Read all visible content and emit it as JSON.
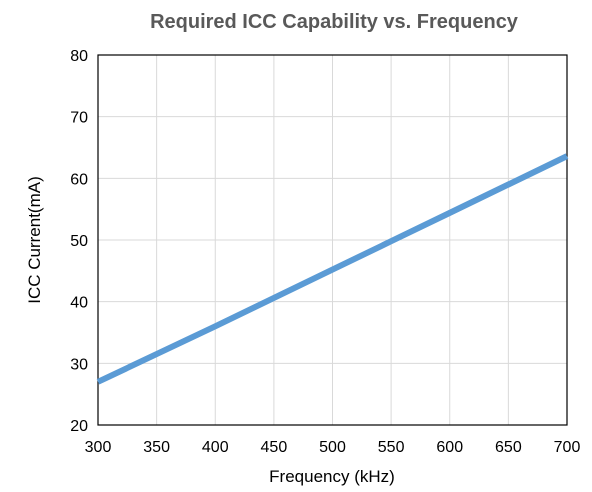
{
  "chart_data": {
    "type": "line",
    "title": "Required ICC Capability vs. Frequency",
    "xlabel": "Frequency (kHz)",
    "ylabel": "ICC Current(mA)",
    "xlim": [
      300,
      700
    ],
    "ylim": [
      20,
      80
    ],
    "x_ticks": [
      300,
      350,
      400,
      450,
      500,
      550,
      600,
      650,
      700
    ],
    "y_ticks": [
      20,
      30,
      40,
      50,
      60,
      70,
      80
    ],
    "grid": true,
    "legend": "none",
    "series": [
      {
        "x": [
          300,
          350,
          400,
          450,
          500,
          550,
          600,
          650,
          700
        ],
        "y": [
          27,
          31.5,
          36,
          40.6,
          45.2,
          49.8,
          54.4,
          59,
          63.6
        ],
        "color": "#5b9bd5"
      }
    ]
  }
}
